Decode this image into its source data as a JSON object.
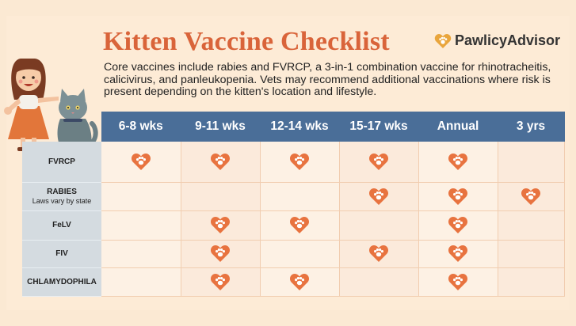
{
  "title": "Kitten Vaccine Checklist",
  "brand": {
    "name": "PawlicyAdvisor",
    "icon": "paw-heart-icon"
  },
  "intro": "Core vaccines include rabies and FVRCP, a 3-in-1 combination vaccine for rhinotracheitis, calicivirus, and panleukopenia. Vets may recommend additional vaccinations where risk is present depending on the kitten's location and lifestyle.",
  "columns": [
    "6-8 wks",
    "9-11 wks",
    "12-14 wks",
    "15-17 wks",
    "Annual",
    "3 yrs"
  ],
  "rows": [
    {
      "name": "FVRCP",
      "note": "",
      "marks": [
        true,
        true,
        true,
        true,
        true,
        false
      ]
    },
    {
      "name": "RABIES",
      "note": "Laws vary by state",
      "marks": [
        false,
        false,
        false,
        true,
        true,
        true
      ]
    },
    {
      "name": "FeLV",
      "note": "",
      "marks": [
        false,
        true,
        true,
        false,
        true,
        false
      ]
    },
    {
      "name": "FIV",
      "note": "",
      "marks": [
        false,
        true,
        false,
        true,
        true,
        false
      ]
    },
    {
      "name": "CHLAMYDOPHILA",
      "note": "",
      "marks": [
        false,
        true,
        true,
        false,
        true,
        false
      ]
    }
  ],
  "colors": {
    "title": "#d9643a",
    "header": "#4a6e98",
    "heart": "#e8733f",
    "label_bg": "#d4dbe0",
    "cell_bg": "#fdf1e4"
  }
}
